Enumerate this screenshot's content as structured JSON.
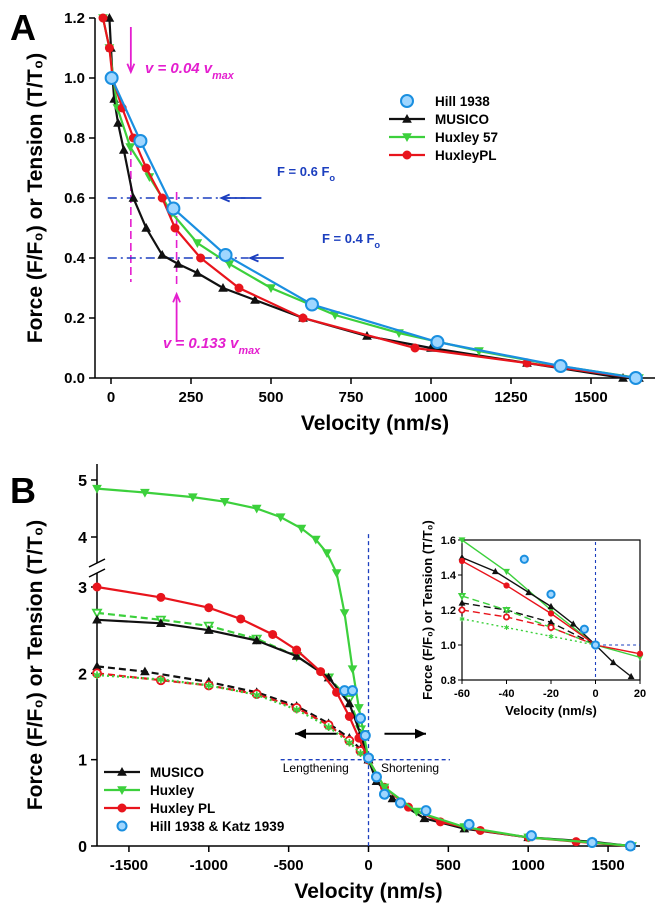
{
  "chart_data": [
    {
      "panel": "A",
      "type": "line",
      "xlabel": "Velocity (nm/s)",
      "ylabel": "Force (F/F₀) or Tension (T/T₀)",
      "xlim": [
        -50,
        1700
      ],
      "ylim": [
        0,
        1.2
      ],
      "xticks": [
        0,
        250,
        500,
        750,
        1000,
        1250,
        1500
      ],
      "yticks": [
        0.0,
        0.2,
        0.4,
        0.6,
        0.8,
        1.0,
        1.2
      ],
      "legend_position": "right",
      "series": [
        {
          "name": "Hill 1938",
          "color": "#1a8fe0",
          "marker": "circle-open",
          "x": [
            2,
            92,
            195,
            358,
            628,
            1020,
            1405,
            1640
          ],
          "y": [
            1.0,
            0.79,
            0.565,
            0.41,
            0.245,
            0.12,
            0.04,
            0.0
          ]
        },
        {
          "name": "MUSICO",
          "color": "#111111",
          "marker": "triangle",
          "x": [
            -5,
            0,
            5,
            10,
            22,
            40,
            70,
            110,
            160,
            210,
            270,
            350,
            450,
            600,
            800,
            1000,
            1300,
            1600,
            1650
          ],
          "y": [
            1.2,
            1.1,
            1.0,
            0.93,
            0.85,
            0.76,
            0.6,
            0.5,
            0.41,
            0.38,
            0.35,
            0.3,
            0.26,
            0.2,
            0.14,
            0.1,
            0.05,
            0.0,
            0.0
          ]
        },
        {
          "name": "Huxley 57",
          "color": "#3cd03c",
          "marker": "triangle-down",
          "x": [
            -25,
            -5,
            20,
            60,
            120,
            190,
            270,
            370,
            500,
            700,
            900,
            1150,
            1400,
            1650
          ],
          "y": [
            1.2,
            1.1,
            0.9,
            0.77,
            0.67,
            0.55,
            0.45,
            0.38,
            0.3,
            0.21,
            0.15,
            0.09,
            0.04,
            0.0
          ]
        },
        {
          "name": "HuxleyPL",
          "color": "#e8141c",
          "marker": "circle",
          "x": [
            -25,
            -5,
            5,
            35,
            70,
            110,
            160,
            200,
            280,
            400,
            600,
            950,
            1300,
            1640
          ],
          "y": [
            1.2,
            1.1,
            1.0,
            0.9,
            0.8,
            0.7,
            0.6,
            0.5,
            0.4,
            0.3,
            0.2,
            0.1,
            0.05,
            0.0
          ]
        }
      ],
      "annotations": [
        {
          "text": "v = 0.04 v",
          "sub": "max",
          "color": "#e41ecf"
        },
        {
          "text": "v = 0.133 v",
          "sub": "max",
          "color": "#e41ecf"
        },
        {
          "text": "F = 0.6 F",
          "sub": "o",
          "color": "#1c3fbf"
        },
        {
          "text": "F = 0.4 F",
          "sub": "o",
          "color": "#1c3fbf"
        }
      ]
    },
    {
      "panel": "B",
      "type": "line",
      "xlabel": "Velocity (nm/s)",
      "ylabel": "Force (F/F₀) or Tension (T/T₀)",
      "xlim": [
        -1700,
        1700
      ],
      "y_axis_broken": true,
      "yticks": [
        0,
        1,
        2,
        3,
        4,
        5
      ],
      "xticks": [
        -1500,
        -1000,
        -500,
        0,
        500,
        1000,
        1500
      ],
      "legend_position": "bottom-left",
      "series": [
        {
          "name": "MUSICO",
          "color": "#111111",
          "marker": "triangle",
          "style": "solid",
          "x": [
            -1700,
            -1300,
            -1000,
            -700,
            -450,
            -250,
            -120,
            -50,
            0,
            50,
            150,
            350,
            600,
            1000,
            1400,
            1640
          ],
          "y": [
            2.62,
            2.58,
            2.5,
            2.38,
            2.2,
            1.95,
            1.65,
            1.3,
            1.0,
            0.75,
            0.55,
            0.32,
            0.2,
            0.1,
            0.05,
            0.0
          ]
        },
        {
          "name": "Huxley",
          "color": "#3cd03c",
          "marker": "triangle-down",
          "style": "solid",
          "x": [
            -1700,
            -1400,
            -1100,
            -900,
            -700,
            -550,
            -420,
            -330,
            -260,
            -200,
            -150,
            -100,
            -60,
            -30,
            0,
            100,
            300,
            600,
            1000,
            1400,
            1650
          ],
          "y": [
            4.85,
            4.78,
            4.7,
            4.62,
            4.5,
            4.35,
            4.15,
            3.95,
            3.68,
            3.28,
            2.7,
            2.05,
            1.6,
            1.3,
            1.0,
            0.68,
            0.4,
            0.22,
            0.1,
            0.04,
            0.0
          ]
        },
        {
          "name": "Huxley PL",
          "color": "#e8141c",
          "marker": "circle",
          "style": "solid",
          "x": [
            -1700,
            -1300,
            -1000,
            -800,
            -600,
            -450,
            -300,
            -200,
            -120,
            -60,
            0,
            100,
            250,
            450,
            700,
            1000,
            1300,
            1640
          ],
          "y": [
            3.0,
            2.88,
            2.76,
            2.63,
            2.45,
            2.27,
            2.02,
            1.78,
            1.5,
            1.25,
            1.0,
            0.68,
            0.45,
            0.28,
            0.18,
            0.1,
            0.05,
            0.0
          ]
        },
        {
          "name": "Hill 1938 & Katz 1939",
          "color": "#1a8fe0",
          "marker": "circle-open",
          "style": "none",
          "x": [
            -150,
            -100,
            -50,
            -20,
            0,
            50,
            100,
            200,
            360,
            630,
            1020,
            1400,
            1640
          ],
          "y": [
            1.8,
            1.8,
            1.48,
            1.28,
            1.02,
            0.8,
            0.6,
            0.5,
            0.41,
            0.25,
            0.12,
            0.04,
            0.0
          ]
        },
        {
          "name": "",
          "color": "#111111",
          "marker": "triangle",
          "style": "dashed",
          "x": [
            -1700,
            -1400,
            -1000,
            -700,
            -450,
            -250,
            -120,
            -50,
            0
          ],
          "y": [
            2.08,
            2.02,
            1.9,
            1.78,
            1.62,
            1.42,
            1.25,
            1.12,
            1.0
          ]
        },
        {
          "name": "",
          "color": "#3cd03c",
          "marker": "triangle-down-open",
          "style": "dashed",
          "x": [
            -1700,
            -1300,
            -1000,
            -700,
            -450,
            -250,
            -120,
            -50,
            0
          ],
          "y": [
            2.7,
            2.62,
            2.55,
            2.4,
            2.2,
            1.95,
            1.7,
            1.35,
            1.0
          ]
        },
        {
          "name": "",
          "color": "#e8141c",
          "marker": "circle-open",
          "style": "dashed",
          "x": [
            -1700,
            -1300,
            -1000,
            -700,
            -450,
            -250,
            -120,
            -50,
            0
          ],
          "y": [
            2.0,
            1.92,
            1.86,
            1.76,
            1.6,
            1.4,
            1.22,
            1.1,
            1.0
          ]
        },
        {
          "name": "",
          "color": "#3cd03c",
          "marker": "star",
          "style": "dotted",
          "x": [
            -1700,
            -1300,
            -1000,
            -700,
            -450,
            -250,
            -120,
            -50,
            0
          ],
          "y": [
            1.98,
            1.93,
            1.86,
            1.75,
            1.58,
            1.38,
            1.2,
            1.08,
            1.0
          ]
        }
      ],
      "annotations": [
        {
          "text": "Lengthening"
        },
        {
          "text": "Shortening"
        }
      ]
    },
    {
      "panel": "B-inset",
      "type": "line",
      "xlabel": "Velocity (nm/s)",
      "ylabel": "Force (F/F₀) or Tension (T/T₀)",
      "xlim": [
        -60,
        20
      ],
      "ylim": [
        0.8,
        1.6
      ],
      "xticks": [
        -60,
        -40,
        -20,
        0,
        20
      ],
      "yticks": [
        0.8,
        1.0,
        1.2,
        1.4,
        1.6
      ],
      "series": [
        {
          "name": "",
          "color": "#3cd03c",
          "style": "solid",
          "marker": "triangle-down",
          "x": [
            -60,
            -40,
            -20,
            0,
            20
          ],
          "y": [
            1.6,
            1.42,
            1.2,
            1.0,
            0.93
          ]
        },
        {
          "name": "",
          "color": "#111111",
          "style": "solid",
          "marker": "triangle",
          "x": [
            -60,
            -45,
            -30,
            -20,
            -10,
            0,
            8,
            16
          ],
          "y": [
            1.5,
            1.42,
            1.3,
            1.22,
            1.12,
            1.0,
            0.9,
            0.82
          ]
        },
        {
          "name": "",
          "color": "#e8141c",
          "style": "solid",
          "marker": "circle",
          "x": [
            -60,
            -40,
            -20,
            0,
            20
          ],
          "y": [
            1.48,
            1.34,
            1.18,
            1.0,
            0.95
          ]
        },
        {
          "name": "",
          "color": "#111111",
          "style": "dashed",
          "marker": "triangle",
          "x": [
            -60,
            -40,
            -20,
            0
          ],
          "y": [
            1.24,
            1.2,
            1.13,
            1.0
          ]
        },
        {
          "name": "",
          "color": "#3cd03c",
          "style": "dashed",
          "marker": "triangle-down-open",
          "x": [
            -60,
            -40,
            -20,
            0
          ],
          "y": [
            1.28,
            1.2,
            1.1,
            1.0
          ]
        },
        {
          "name": "",
          "color": "#e8141c",
          "style": "dashed",
          "marker": "circle-open",
          "x": [
            -60,
            -40,
            -20,
            0
          ],
          "y": [
            1.2,
            1.16,
            1.1,
            1.0
          ]
        },
        {
          "name": "",
          "color": "#3cd03c",
          "style": "dotted",
          "marker": "star",
          "x": [
            -60,
            -40,
            -20,
            0
          ],
          "y": [
            1.15,
            1.1,
            1.05,
            1.0
          ]
        },
        {
          "name": "",
          "color": "#1a8fe0",
          "style": "none",
          "marker": "circle-open",
          "x": [
            -32,
            -20,
            -5,
            0
          ],
          "y": [
            1.49,
            1.29,
            1.09,
            1.0
          ]
        }
      ]
    }
  ],
  "panel_labels": {
    "a": "A",
    "b": "B"
  }
}
